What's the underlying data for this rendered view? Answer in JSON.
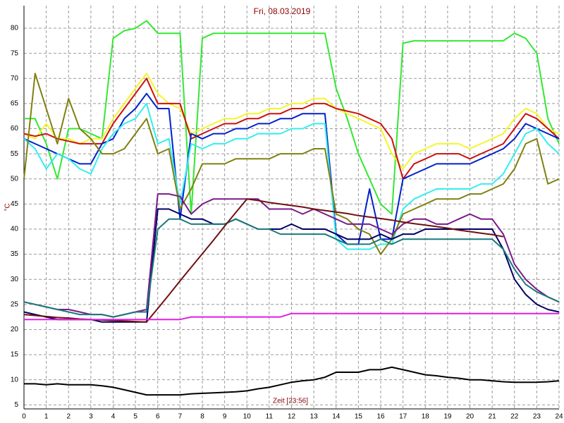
{
  "chart_data": {
    "type": "line",
    "title": "Fri, 08.03.2019",
    "ylabel": "°C",
    "xlabel": "Zeit [23:56]",
    "x": [
      0,
      0.5,
      1,
      1.5,
      2,
      2.5,
      3,
      3.5,
      4,
      4.5,
      5,
      5.5,
      6,
      6.5,
      7,
      7.5,
      8,
      8.5,
      9,
      9.5,
      10,
      10.5,
      11,
      11.5,
      12,
      12.5,
      13,
      13.5,
      14,
      14.5,
      15,
      15.5,
      16,
      16.5,
      17,
      17.5,
      18,
      18.5,
      19,
      19.5,
      20,
      20.5,
      21,
      21.5,
      22,
      22.5,
      23,
      23.5,
      24
    ],
    "xlim": [
      0,
      24
    ],
    "xticks": [
      0,
      1,
      2,
      3,
      4,
      5,
      6,
      7,
      8,
      9,
      10,
      11,
      12,
      13,
      14,
      15,
      16,
      17,
      18,
      19,
      20,
      21,
      22,
      23,
      24
    ],
    "ylim": [
      4.2,
      84.5
    ],
    "yticks": [
      5,
      10,
      15,
      20,
      25,
      30,
      35,
      40,
      45,
      50,
      55,
      60,
      65,
      70,
      75,
      80
    ],
    "grid": true,
    "series": [
      {
        "color": "#33e833",
        "values": [
          62,
          62,
          57,
          50,
          60,
          60,
          59,
          58,
          78,
          79.5,
          80,
          81.5,
          79,
          79,
          79,
          43,
          78,
          79,
          79,
          79,
          79,
          79,
          79,
          79,
          79,
          79,
          79,
          79,
          68,
          62,
          55,
          50,
          45,
          43,
          77,
          77.5,
          77.5,
          77.5,
          77.5,
          77.5,
          77.5,
          77.5,
          77.5,
          77.5,
          79,
          78,
          75,
          62,
          57
        ]
      },
      {
        "color": "#f5f52a",
        "values": [
          59,
          58,
          61,
          58,
          58,
          57,
          58,
          58,
          62,
          65,
          68,
          71,
          67,
          65,
          64,
          59,
          60,
          61,
          62,
          62,
          63,
          63,
          64,
          64,
          65,
          65,
          66,
          66,
          64,
          63,
          62,
          61,
          60,
          55,
          52,
          55,
          56,
          57,
          57,
          57,
          56,
          57,
          58,
          59,
          62,
          64,
          63,
          60,
          59
        ]
      },
      {
        "color": "#cc1111",
        "values": [
          59,
          58.5,
          59,
          58,
          57.5,
          57,
          57,
          57,
          61,
          64,
          67,
          70,
          65,
          65,
          65,
          58,
          59,
          60,
          61,
          61,
          62,
          62,
          63,
          63,
          64,
          64,
          65,
          65,
          64,
          63.5,
          63,
          62,
          61,
          58,
          50,
          53,
          54,
          55,
          55,
          55,
          54,
          55,
          56,
          57,
          60,
          63,
          62,
          60,
          58
        ]
      },
      {
        "color": "#0022cc",
        "values": [
          58,
          57,
          56,
          55,
          54,
          53,
          53,
          57,
          58,
          62,
          64,
          67,
          64,
          64,
          42,
          59,
          58,
          59,
          59,
          60,
          60,
          61,
          61,
          62,
          62,
          63,
          63,
          63,
          39,
          37,
          37,
          48,
          38,
          38,
          50,
          51,
          52,
          53,
          53,
          53,
          53,
          54,
          55,
          56,
          58,
          61,
          60,
          59,
          58
        ]
      },
      {
        "color": "#33eeee",
        "values": [
          58,
          56,
          52,
          55,
          54,
          52,
          51,
          56,
          59,
          61,
          62,
          65,
          57,
          58,
          45,
          57,
          56,
          57,
          57,
          58,
          58,
          59,
          59,
          59,
          60,
          60,
          61,
          61,
          38,
          36,
          36,
          36,
          37,
          37,
          44,
          46,
          47,
          48,
          48,
          48,
          48,
          49,
          49,
          51,
          55,
          59,
          60,
          57,
          55
        ]
      },
      {
        "color": "#808010",
        "values": [
          50,
          71,
          64,
          57,
          66,
          60,
          58,
          55,
          55,
          56,
          59,
          62,
          55,
          56,
          44,
          48,
          53,
          53,
          53,
          54,
          54,
          54,
          54,
          55,
          55,
          55,
          56,
          56,
          43,
          42,
          40,
          39,
          35,
          38,
          43,
          44,
          45,
          46,
          46,
          46,
          47,
          47,
          48,
          49,
          52,
          57,
          58,
          49,
          50
        ]
      },
      {
        "color": "#7a1a8a",
        "values": [
          25.5,
          25,
          24.5,
          24,
          24,
          23.5,
          23,
          23,
          22.5,
          23,
          23.5,
          24,
          47,
          47,
          46.5,
          43,
          45,
          46,
          46,
          46,
          46,
          46,
          44,
          44,
          44,
          43,
          44,
          43,
          42,
          41,
          41,
          41,
          40,
          39,
          41,
          42,
          42,
          41,
          41,
          42,
          43,
          42,
          42,
          39,
          33,
          30,
          28,
          26.5,
          25.5
        ]
      },
      {
        "color": "#000066",
        "values": [
          23.5,
          23,
          22.5,
          22,
          22,
          22,
          22,
          21.5,
          21.5,
          21.5,
          21.5,
          21.5,
          44,
          44,
          43,
          42,
          42,
          41,
          41,
          42,
          41,
          40,
          40,
          40,
          41,
          40,
          40,
          40,
          39,
          38,
          38,
          38,
          39,
          38,
          39,
          39,
          40,
          40,
          40,
          40,
          40,
          40,
          40,
          36,
          30,
          27,
          25,
          24,
          23.5
        ]
      },
      {
        "color": "#1a7a7a",
        "values": [
          25.5,
          25,
          24.5,
          24,
          23.5,
          23,
          23,
          23,
          22.5,
          23,
          23.5,
          23.5,
          40,
          42,
          42,
          41,
          41,
          41,
          41,
          42,
          41,
          40,
          40,
          39,
          39,
          39,
          39,
          39,
          38,
          37,
          37,
          37,
          38,
          37,
          38,
          38,
          38,
          38,
          38,
          38,
          38,
          38,
          38,
          36,
          32,
          29,
          27.5,
          26.5,
          25.5
        ]
      },
      {
        "color": "#701010",
        "values": [
          23,
          22.8,
          22.6,
          22.4,
          22.3,
          22.1,
          22,
          21.9,
          21.8,
          21.7,
          21.6,
          21.5,
          24.2,
          26.9,
          29.7,
          32.4,
          35.1,
          37.8,
          40.6,
          43.3,
          46,
          45.7,
          45.3,
          45,
          44.7,
          44.4,
          44,
          43.7,
          43.4,
          43.1,
          42.7,
          42.4,
          42.1,
          41.8,
          41.4,
          41.1,
          40.8,
          40.5,
          40.2,
          39.8,
          39.5,
          39.2,
          38.9,
          38.5,
          null,
          null,
          null,
          null,
          null
        ]
      },
      {
        "color": "#e020e0",
        "values": [
          22,
          22,
          22,
          22,
          22,
          22,
          22,
          22,
          22,
          22,
          22,
          22,
          22,
          22,
          22,
          22.5,
          22.5,
          22.5,
          22.5,
          22.5,
          22.5,
          22.5,
          22.5,
          22.5,
          23.2,
          23.2,
          23.2,
          23.2,
          23.2,
          23.2,
          23.2,
          23.2,
          23.2,
          23.2,
          23.2,
          23.2,
          23.2,
          23.2,
          23.2,
          23.2,
          23.2,
          23.2,
          23.2,
          23.2,
          23.2,
          23.2,
          23.2,
          23.2,
          23.2
        ]
      },
      {
        "color": "#000000",
        "values": [
          9.2,
          9.2,
          9,
          9.2,
          9,
          9,
          9,
          8.8,
          8.5,
          8,
          7.5,
          7,
          7,
          7,
          7,
          7.2,
          7.3,
          7.4,
          7.5,
          7.6,
          7.8,
          8.2,
          8.5,
          9,
          9.5,
          9.8,
          10,
          10.5,
          11.5,
          11.5,
          11.5,
          12,
          12,
          12.5,
          12,
          11.5,
          11,
          10.8,
          10.5,
          10.3,
          10,
          10,
          9.8,
          9.6,
          9.5,
          9.5,
          9.5,
          9.6,
          9.8
        ]
      }
    ]
  }
}
